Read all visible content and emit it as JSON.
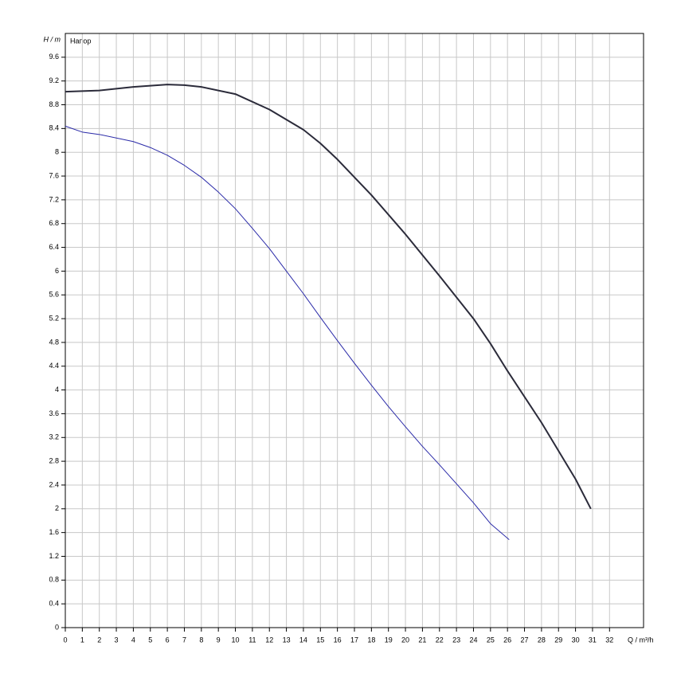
{
  "chart_data": {
    "type": "line",
    "ylabel": "H / m",
    "xlabel": "Q / m³/h",
    "annotation": "Напор",
    "xlim": [
      0,
      34
    ],
    "ylim": [
      0,
      10
    ],
    "xticks": [
      0,
      1,
      2,
      3,
      4,
      5,
      6,
      7,
      8,
      9,
      10,
      11,
      12,
      13,
      14,
      15,
      16,
      17,
      18,
      19,
      20,
      21,
      22,
      23,
      24,
      25,
      26,
      27,
      28,
      29,
      30,
      31,
      32
    ],
    "yticks": [
      0,
      0.4,
      0.8,
      1.2,
      1.6,
      2,
      2.4,
      2.8,
      3.2,
      3.6,
      4,
      4.4,
      4.8,
      5.2,
      5.6,
      6,
      6.4,
      6.8,
      7.2,
      7.6,
      8,
      8.4,
      8.8,
      9.2,
      9.6
    ],
    "grid": true,
    "series": [
      {
        "color": "#2b2b3a",
        "width": 2,
        "x": [
          0,
          2,
          4,
          6,
          7,
          8,
          10,
          12,
          14,
          15,
          16,
          18,
          20,
          22,
          24,
          25,
          26,
          28,
          30,
          30.9
        ],
        "values": [
          9.02,
          9.04,
          9.1,
          9.14,
          9.13,
          9.1,
          8.98,
          8.72,
          8.38,
          8.15,
          7.88,
          7.28,
          6.62,
          5.92,
          5.2,
          4.78,
          4.32,
          3.45,
          2.5,
          2.0
        ]
      },
      {
        "color": "#2a2aa8",
        "width": 1,
        "x": [
          0,
          1,
          2,
          4,
          5,
          6,
          7,
          8,
          9,
          10,
          11,
          12,
          13,
          14,
          15,
          16,
          17,
          18,
          19,
          20,
          21,
          22,
          23,
          24,
          25,
          26.1
        ],
        "values": [
          8.44,
          8.34,
          8.3,
          8.18,
          8.08,
          7.95,
          7.78,
          7.58,
          7.33,
          7.05,
          6.72,
          6.38,
          6.0,
          5.62,
          5.22,
          4.83,
          4.45,
          4.08,
          3.72,
          3.38,
          3.05,
          2.74,
          2.42,
          2.1,
          1.75,
          1.48
        ]
      }
    ]
  }
}
